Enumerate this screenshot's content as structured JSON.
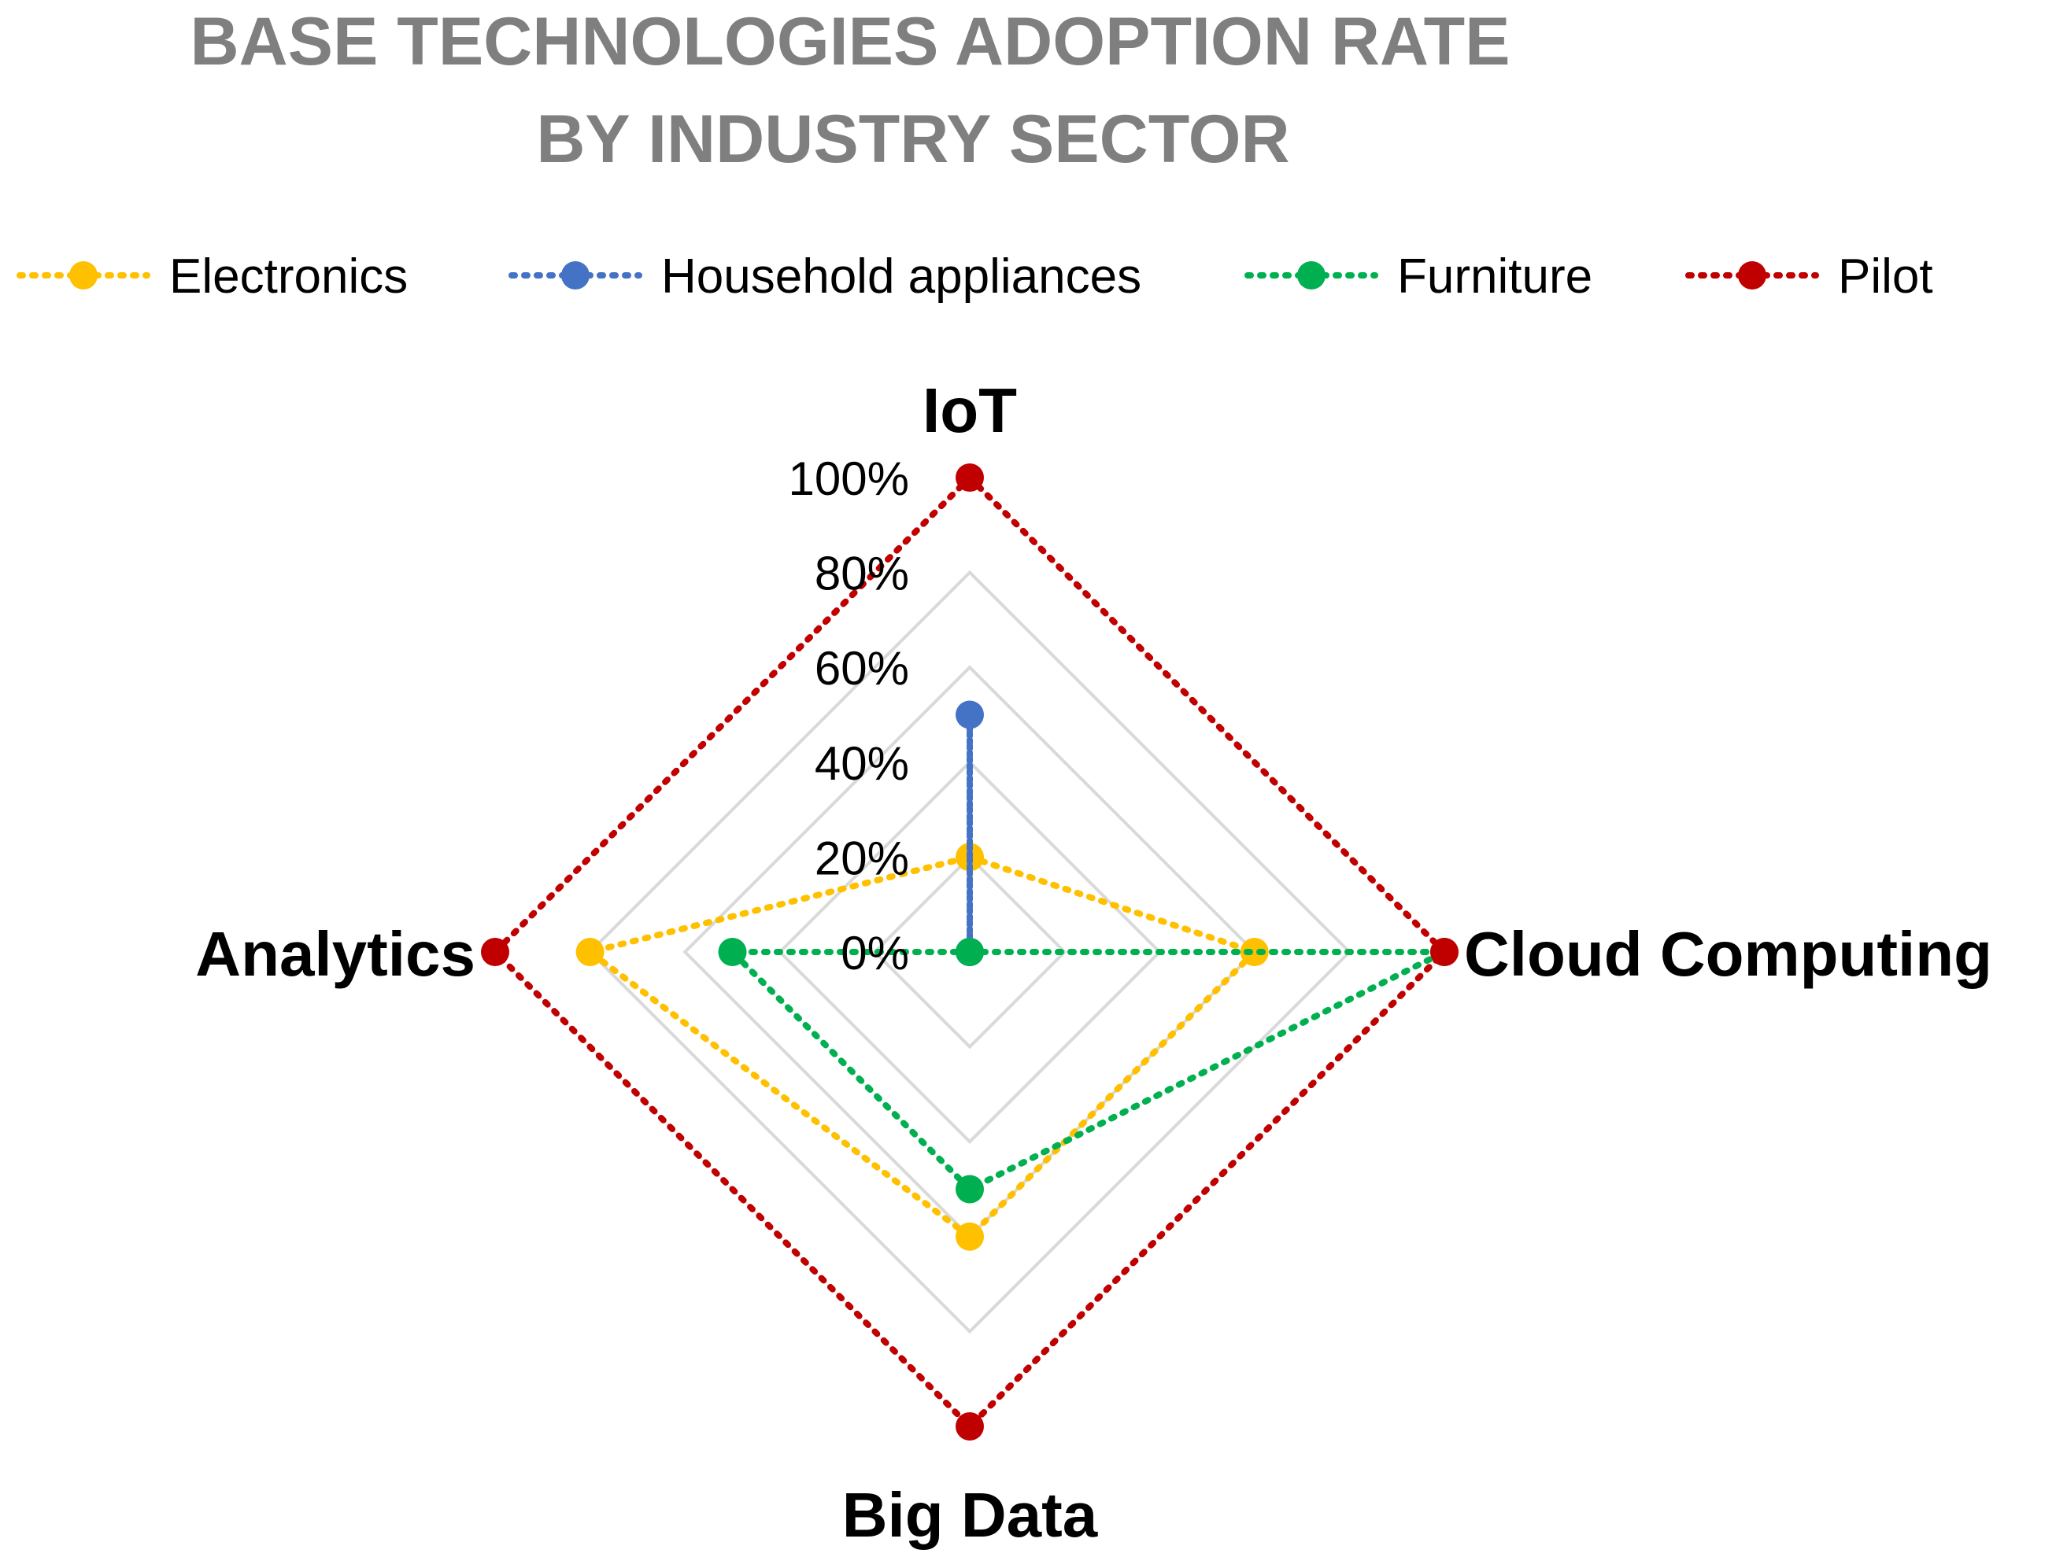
{
  "chart_data": {
    "type": "radar",
    "title": [
      "BASE TECHNOLOGIES ADOPTION RATE",
      "BY INDUSTRY SECTOR"
    ],
    "axes": [
      "IoT",
      "Cloud Computing",
      "Big Data",
      "Analytics"
    ],
    "rlim": [
      0,
      100
    ],
    "ticks": [
      0,
      20,
      40,
      60,
      80,
      100
    ],
    "tick_labels": [
      "0%",
      "20%",
      "40%",
      "60%",
      "80%",
      "100%"
    ],
    "grid": true,
    "legend_position": "top",
    "series": [
      {
        "name": "Electronics",
        "color": "#ffc000",
        "values": [
          20,
          60,
          60,
          80
        ]
      },
      {
        "name": "Household appliances",
        "color": "#4472c4",
        "values": [
          50,
          0,
          0,
          0
        ]
      },
      {
        "name": "Furniture",
        "color": "#00b050",
        "values": [
          0,
          100,
          50,
          50
        ]
      },
      {
        "name": "Pilot",
        "color": "#c00000",
        "values": [
          100,
          100,
          100,
          100
        ]
      }
    ]
  }
}
